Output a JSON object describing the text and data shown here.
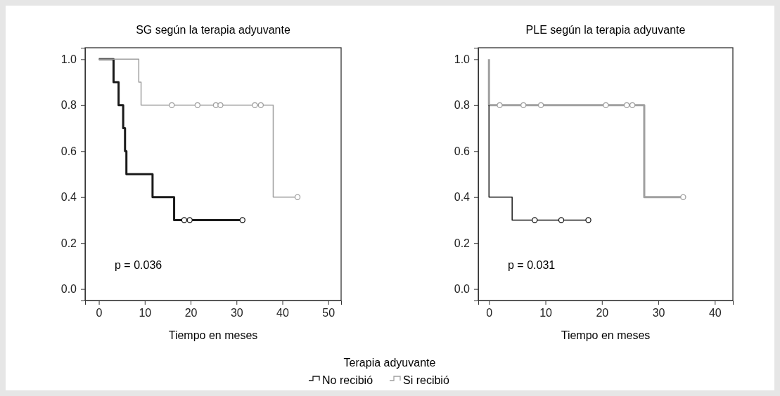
{
  "chart_data": [
    {
      "type": "step",
      "title": "SG según la terapia adyuvante",
      "xlabel": "Tiempo en meses",
      "xlim": [
        -3,
        52.8
      ],
      "xticks": [
        0,
        10,
        20,
        30,
        40,
        50
      ],
      "ylim": [
        -0.05,
        1.05
      ],
      "yticks": [
        {
          "value": 0,
          "label": "0.0"
        },
        {
          "value": 0.2,
          "label": "0.2"
        },
        {
          "value": 0.4,
          "label": "0.4"
        },
        {
          "value": 0.6,
          "label": "0.6"
        },
        {
          "value": 0.8,
          "label": "0.8"
        },
        {
          "value": 1,
          "label": "1.0"
        }
      ],
      "grid": false,
      "legend": "bottom",
      "legend_title": "Terapia adyuvante",
      "annotations": [
        "p = 0.036"
      ],
      "series": [
        {
          "name": "No recibió",
          "color": "#1a1a1a",
          "x": [
            0,
            3.2,
            4.3,
            5.3,
            5.7,
            6.0,
            11.7,
            16.4,
            31.3
          ],
          "values": [
            1,
            0.9,
            0.8,
            0.7,
            0.6,
            0.5,
            0.4,
            0.3,
            0.3
          ]
        },
        {
          "name": "Si recibió",
          "color": "#a0a0a0",
          "x": [
            0,
            8.7,
            9.2,
            38.0,
            43.3
          ],
          "values": [
            1,
            0.9,
            0.8,
            0.4,
            0.4
          ]
        },
        {
          "type": "scatter",
          "marker": "circle",
          "color": "#1a1a1a",
          "x": [
            18.6,
            19.8,
            31.3
          ],
          "values": [
            0.3,
            0.3,
            0.3
          ]
        },
        {
          "type": "scatter",
          "marker": "circle",
          "color": "#a0a0a0",
          "x": [
            15.9,
            21.5,
            25.5,
            26.5,
            34,
            35.3,
            43.3
          ],
          "values": [
            0.8,
            0.8,
            0.8,
            0.8,
            0.8,
            0.8,
            0.4
          ]
        }
      ]
    },
    {
      "type": "step",
      "title": "PLE según la terapia adyuvante",
      "xlabel": "Tiempo en meses",
      "xlim": [
        -1.9,
        43.2
      ],
      "xticks": [
        0,
        10,
        20,
        30,
        40
      ],
      "ylim": [
        -0.05,
        1.05
      ],
      "yticks": [
        {
          "value": 0,
          "label": "0.0"
        },
        {
          "value": 0.2,
          "label": "0.2"
        },
        {
          "value": 0.4,
          "label": "0.4"
        },
        {
          "value": 0.6,
          "label": "0.6"
        },
        {
          "value": 0.8,
          "label": "0.8"
        },
        {
          "value": 1,
          "label": "1.0"
        }
      ],
      "grid": false,
      "annotations": [
        "p = 0.031"
      ],
      "series": [
        {
          "color": "#a0a0a0",
          "x": [
            0,
            0,
            27.5,
            34.4
          ],
          "values": [
            1,
            0.8,
            0.4,
            0.4
          ]
        },
        {
          "color": "#1a1a1a",
          "x": [
            0,
            0,
            4.1,
            17.6
          ],
          "values": [
            0.8,
            0.4,
            0.3,
            0.3
          ]
        },
        {
          "type": "scatter",
          "marker": "circle",
          "color": "#1a1a1a",
          "x": [
            8.1,
            12.8,
            17.6
          ],
          "values": [
            0.3,
            0.3,
            0.3
          ]
        },
        {
          "type": "scatter",
          "marker": "circle",
          "color": "#a0a0a0",
          "x": [
            1.9,
            6.1,
            9.2,
            20.7,
            24.4,
            25.4,
            34.4
          ],
          "values": [
            0.8,
            0.8,
            0.8,
            0.8,
            0.8,
            0.8,
            0.4
          ]
        }
      ]
    }
  ]
}
